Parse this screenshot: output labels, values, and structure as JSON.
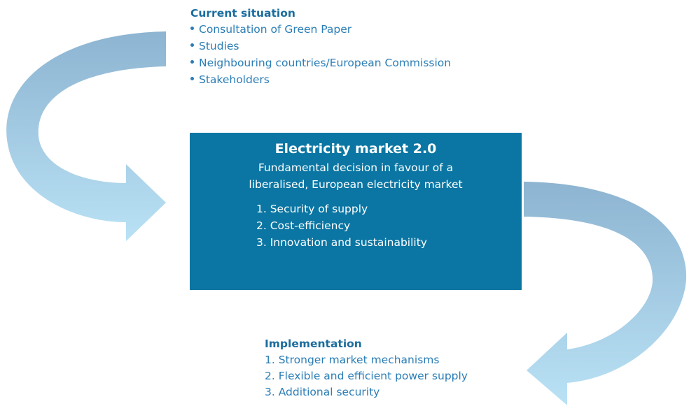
{
  "current": {
    "title": "Current situation",
    "items": [
      "Consultation of Green Paper",
      "Studies",
      "Neighbouring countries/European Commission",
      "Stakeholders"
    ]
  },
  "box": {
    "title": "Electricity market 2.0",
    "subtitle_lines": [
      "Fundamental decision in favour of a",
      "liberalised, European electricity market"
    ],
    "items": [
      "1. Security of supply",
      "2. Cost-efficiency",
      "3. Innovation and sustainability"
    ]
  },
  "implementation": {
    "title": "Implementation",
    "items": [
      "1. Stronger market mechanisms",
      "2. Flexible and efficient power supply",
      "3. Additional security"
    ]
  }
}
